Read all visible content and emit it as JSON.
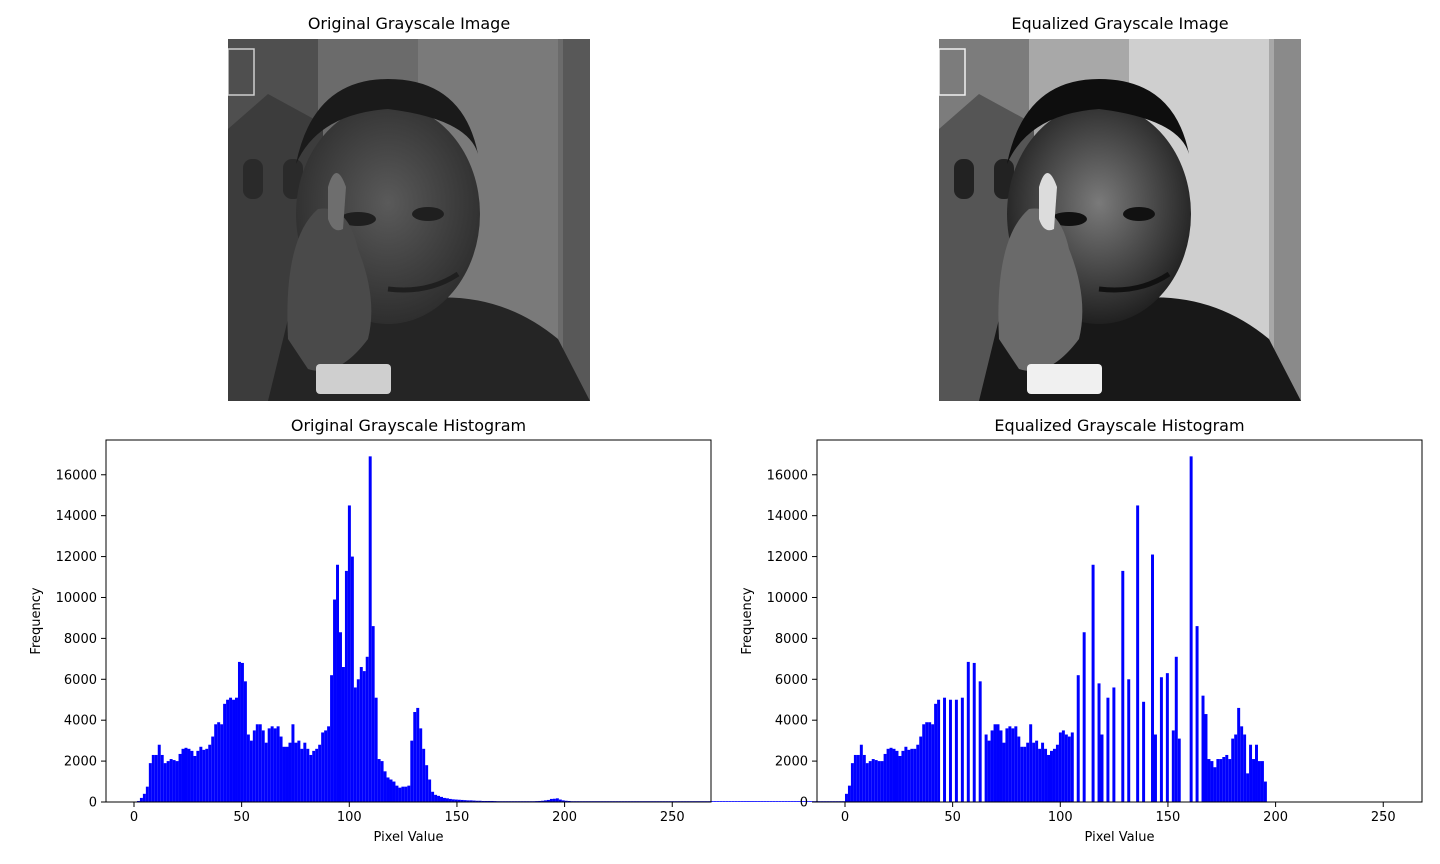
{
  "images": {
    "original": {
      "title": "Original Grayscale Image"
    },
    "equalized": {
      "title": "Equalized Grayscale Image"
    }
  },
  "colors": {
    "bar": "#0000ff",
    "axis": "#000000",
    "background": "#ffffff"
  },
  "chart_data": [
    {
      "id": "orig",
      "type": "bar",
      "title": "Original Grayscale Histogram",
      "xlabel": "Pixel Value",
      "ylabel": "Frequency",
      "xlim": [
        -13,
        268
      ],
      "ylim": [
        0,
        17700
      ],
      "xticks": [
        0,
        50,
        100,
        150,
        200,
        250
      ],
      "yticks": [
        0,
        2000,
        4000,
        6000,
        8000,
        10000,
        12000,
        14000,
        16000
      ],
      "bin_width": 1.38,
      "bins": [
        [
          1,
          50
        ],
        [
          2,
          200
        ],
        [
          3,
          400
        ],
        [
          4,
          750
        ],
        [
          5,
          1900
        ],
        [
          6,
          2300
        ],
        [
          7,
          2300
        ],
        [
          8,
          2800
        ],
        [
          9,
          2300
        ],
        [
          10,
          1900
        ],
        [
          11,
          2000
        ],
        [
          12,
          2100
        ],
        [
          13,
          2050
        ],
        [
          14,
          2000
        ],
        [
          15,
          2350
        ],
        [
          16,
          2600
        ],
        [
          17,
          2650
        ],
        [
          18,
          2600
        ],
        [
          19,
          2500
        ],
        [
          20,
          2250
        ],
        [
          21,
          2500
        ],
        [
          22,
          2700
        ],
        [
          23,
          2550
        ],
        [
          24,
          2600
        ],
        [
          25,
          2800
        ],
        [
          26,
          3200
        ],
        [
          27,
          3800
        ],
        [
          28,
          3900
        ],
        [
          29,
          3800
        ],
        [
          30,
          4800
        ],
        [
          31,
          5000
        ],
        [
          32,
          5100
        ],
        [
          33,
          5000
        ],
        [
          34,
          5100
        ],
        [
          35,
          6850
        ],
        [
          36,
          6800
        ],
        [
          37,
          5900
        ],
        [
          38,
          3300
        ],
        [
          39,
          3000
        ],
        [
          40,
          3500
        ],
        [
          41,
          3800
        ],
        [
          42,
          3800
        ],
        [
          43,
          3500
        ],
        [
          44,
          2900
        ],
        [
          45,
          3600
        ],
        [
          46,
          3700
        ],
        [
          47,
          3600
        ],
        [
          48,
          3700
        ],
        [
          49,
          3200
        ],
        [
          50,
          2700
        ],
        [
          51,
          2700
        ],
        [
          52,
          2900
        ],
        [
          53,
          3800
        ],
        [
          54,
          2900
        ],
        [
          55,
          3000
        ],
        [
          56,
          2600
        ],
        [
          57,
          2900
        ],
        [
          58,
          2600
        ],
        [
          59,
          2300
        ],
        [
          60,
          2500
        ],
        [
          61,
          2600
        ],
        [
          62,
          2800
        ],
        [
          63,
          3400
        ],
        [
          64,
          3500
        ],
        [
          65,
          3700
        ],
        [
          66,
          6200
        ],
        [
          67,
          9900
        ],
        [
          68,
          11600
        ],
        [
          69,
          8300
        ],
        [
          70,
          6600
        ],
        [
          71,
          11300
        ],
        [
          72,
          14500
        ],
        [
          73,
          12000
        ],
        [
          74,
          5600
        ],
        [
          75,
          6000
        ],
        [
          76,
          6600
        ],
        [
          77,
          6400
        ],
        [
          78,
          7100
        ],
        [
          79,
          16900
        ],
        [
          80,
          8600
        ],
        [
          81,
          5100
        ],
        [
          82,
          2100
        ],
        [
          83,
          2000
        ],
        [
          84,
          1500
        ],
        [
          85,
          1200
        ],
        [
          86,
          1100
        ],
        [
          87,
          1000
        ],
        [
          88,
          800
        ],
        [
          89,
          700
        ],
        [
          90,
          750
        ],
        [
          91,
          750
        ],
        [
          92,
          800
        ],
        [
          93,
          3000
        ],
        [
          94,
          4400
        ],
        [
          95,
          4600
        ],
        [
          96,
          3600
        ],
        [
          97,
          2600
        ],
        [
          98,
          1800
        ],
        [
          99,
          1100
        ],
        [
          100,
          500
        ],
        [
          101,
          350
        ],
        [
          102,
          300
        ],
        [
          103,
          250
        ],
        [
          104,
          200
        ],
        [
          105,
          180
        ],
        [
          106,
          150
        ],
        [
          107,
          130
        ],
        [
          108,
          120
        ],
        [
          109,
          110
        ],
        [
          110,
          100
        ],
        [
          111,
          90
        ],
        [
          112,
          80
        ],
        [
          113,
          80
        ],
        [
          114,
          70
        ],
        [
          115,
          60
        ],
        [
          116,
          60
        ],
        [
          117,
          50
        ],
        [
          118,
          50
        ],
        [
          119,
          50
        ],
        [
          120,
          50
        ],
        [
          121,
          45
        ],
        [
          122,
          40
        ],
        [
          123,
          40
        ],
        [
          124,
          40
        ],
        [
          125,
          40
        ],
        [
          126,
          40
        ],
        [
          127,
          40
        ],
        [
          128,
          40
        ],
        [
          129,
          40
        ],
        [
          130,
          40
        ],
        [
          131,
          40
        ],
        [
          132,
          40
        ],
        [
          133,
          40
        ],
        [
          134,
          40
        ],
        [
          135,
          45
        ],
        [
          136,
          50
        ],
        [
          137,
          60
        ],
        [
          138,
          80
        ],
        [
          139,
          100
        ],
        [
          140,
          150
        ],
        [
          141,
          160
        ],
        [
          142,
          180
        ],
        [
          143,
          120
        ],
        [
          144,
          80
        ],
        [
          145,
          60
        ],
        [
          146,
          50
        ],
        [
          147,
          40
        ],
        [
          148,
          40
        ],
        [
          149,
          40
        ],
        [
          150,
          40
        ],
        [
          151,
          40
        ],
        [
          152,
          40
        ],
        [
          153,
          40
        ],
        [
          154,
          40
        ],
        [
          155,
          40
        ],
        [
          156,
          40
        ],
        [
          157,
          40
        ],
        [
          158,
          40
        ],
        [
          159,
          40
        ],
        [
          160,
          40
        ],
        [
          161,
          40
        ],
        [
          162,
          40
        ],
        [
          163,
          40
        ],
        [
          164,
          40
        ],
        [
          165,
          40
        ],
        [
          166,
          40
        ],
        [
          167,
          40
        ],
        [
          168,
          40
        ],
        [
          169,
          40
        ],
        [
          170,
          40
        ],
        [
          171,
          40
        ],
        [
          172,
          40
        ],
        [
          173,
          40
        ],
        [
          174,
          40
        ],
        [
          175,
          40
        ],
        [
          176,
          40
        ],
        [
          177,
          40
        ],
        [
          178,
          40
        ],
        [
          179,
          40
        ],
        [
          180,
          40
        ],
        [
          181,
          40
        ],
        [
          182,
          40
        ],
        [
          183,
          40
        ],
        [
          184,
          40
        ],
        [
          185,
          40
        ],
        [
          186,
          40
        ],
        [
          187,
          40
        ],
        [
          188,
          40
        ],
        [
          189,
          40
        ],
        [
          190,
          40
        ],
        [
          191,
          40
        ],
        [
          192,
          40
        ],
        [
          193,
          40
        ],
        [
          194,
          40
        ],
        [
          195,
          40
        ],
        [
          196,
          40
        ],
        [
          197,
          40
        ],
        [
          198,
          40
        ],
        [
          199,
          40
        ],
        [
          200,
          40
        ],
        [
          201,
          40
        ],
        [
          202,
          40
        ],
        [
          203,
          40
        ],
        [
          204,
          40
        ],
        [
          205,
          40
        ],
        [
          206,
          40
        ],
        [
          207,
          40
        ],
        [
          208,
          40
        ],
        [
          209,
          40
        ],
        [
          210,
          40
        ],
        [
          211,
          40
        ],
        [
          212,
          40
        ],
        [
          213,
          40
        ],
        [
          214,
          40
        ],
        [
          215,
          40
        ],
        [
          216,
          40
        ],
        [
          217,
          40
        ],
        [
          218,
          40
        ],
        [
          219,
          40
        ],
        [
          220,
          40
        ],
        [
          221,
          40
        ],
        [
          222,
          40
        ],
        [
          223,
          40
        ],
        [
          224,
          40
        ],
        [
          225,
          40
        ],
        [
          226,
          40
        ],
        [
          227,
          40
        ],
        [
          228,
          40
        ],
        [
          229,
          40
        ],
        [
          230,
          40
        ],
        [
          231,
          40
        ],
        [
          232,
          40
        ],
        [
          233,
          40
        ],
        [
          234,
          40
        ],
        [
          235,
          40
        ],
        [
          236,
          40
        ],
        [
          237,
          40
        ],
        [
          238,
          40
        ],
        [
          239,
          40
        ],
        [
          240,
          40
        ],
        [
          241,
          40
        ],
        [
          242,
          40
        ],
        [
          243,
          40
        ],
        [
          244,
          40
        ],
        [
          245,
          40
        ],
        [
          246,
          40
        ],
        [
          247,
          40
        ],
        [
          248,
          40
        ],
        [
          249,
          40
        ],
        [
          250,
          40
        ],
        [
          251,
          40
        ]
      ]
    },
    {
      "id": "eq",
      "type": "bar",
      "title": "Equalized Grayscale Histogram",
      "xlabel": "Pixel Value",
      "ylabel": "Frequency",
      "xlim": [
        -13,
        268
      ],
      "ylim": [
        0,
        17700
      ],
      "xticks": [
        0,
        50,
        100,
        150,
        200,
        250
      ],
      "yticks": [
        0,
        2000,
        4000,
        6000,
        8000,
        10000,
        12000,
        14000,
        16000
      ],
      "bin_width": 1.38,
      "bins": [
        [
          0,
          400
        ],
        [
          1,
          800
        ],
        [
          2,
          1900
        ],
        [
          3,
          2300
        ],
        [
          4,
          2300
        ],
        [
          5,
          2800
        ],
        [
          6,
          2300
        ],
        [
          7,
          1900
        ],
        [
          8,
          2000
        ],
        [
          9,
          2100
        ],
        [
          10,
          2050
        ],
        [
          11,
          2000
        ],
        [
          12,
          2000
        ],
        [
          13,
          2350
        ],
        [
          14,
          2600
        ],
        [
          15,
          2650
        ],
        [
          16,
          2600
        ],
        [
          17,
          2500
        ],
        [
          18,
          2250
        ],
        [
          19,
          2500
        ],
        [
          20,
          2700
        ],
        [
          21,
          2550
        ],
        [
          22,
          2600
        ],
        [
          23,
          2600
        ],
        [
          24,
          2800
        ],
        [
          25,
          3200
        ],
        [
          26,
          3800
        ],
        [
          27,
          3900
        ],
        [
          28,
          3900
        ],
        [
          29,
          3800
        ],
        [
          30,
          4800
        ],
        [
          31,
          5000
        ],
        [
          33,
          5100
        ],
        [
          35,
          5000
        ],
        [
          37,
          5000
        ],
        [
          39,
          5100
        ],
        [
          41,
          6850
        ],
        [
          43,
          6800
        ],
        [
          45,
          5900
        ],
        [
          47,
          3300
        ],
        [
          48,
          3000
        ],
        [
          49,
          3500
        ],
        [
          50,
          3800
        ],
        [
          51,
          3800
        ],
        [
          52,
          3500
        ],
        [
          53,
          2900
        ],
        [
          54,
          3600
        ],
        [
          55,
          3700
        ],
        [
          56,
          3600
        ],
        [
          57,
          3700
        ],
        [
          58,
          3200
        ],
        [
          59,
          2700
        ],
        [
          60,
          2700
        ],
        [
          61,
          2900
        ],
        [
          62,
          3800
        ],
        [
          63,
          2900
        ],
        [
          64,
          3000
        ],
        [
          65,
          2600
        ],
        [
          66,
          2900
        ],
        [
          67,
          2600
        ],
        [
          68,
          2300
        ],
        [
          69,
          2500
        ],
        [
          70,
          2600
        ],
        [
          71,
          2800
        ],
        [
          72,
          3400
        ],
        [
          73,
          3500
        ],
        [
          74,
          3300
        ],
        [
          75,
          3200
        ],
        [
          76,
          3400
        ],
        [
          78,
          6200
        ],
        [
          80,
          8300
        ],
        [
          83,
          11600
        ],
        [
          85,
          5800
        ],
        [
          86,
          3300
        ],
        [
          88,
          5100
        ],
        [
          90,
          5600
        ],
        [
          93,
          11300
        ],
        [
          95,
          6000
        ],
        [
          98,
          14500
        ],
        [
          100,
          4900
        ],
        [
          103,
          12100
        ],
        [
          104,
          3300
        ],
        [
          106,
          6100
        ],
        [
          108,
          6300
        ],
        [
          110,
          3500
        ],
        [
          111,
          7100
        ],
        [
          112,
          3100
        ],
        [
          116,
          16900
        ],
        [
          118,
          8600
        ],
        [
          120,
          5200
        ],
        [
          121,
          4300
        ],
        [
          122,
          2100
        ],
        [
          123,
          2000
        ],
        [
          124,
          1700
        ],
        [
          125,
          2100
        ],
        [
          126,
          2100
        ],
        [
          127,
          2200
        ],
        [
          128,
          2300
        ],
        [
          129,
          2100
        ],
        [
          130,
          3100
        ],
        [
          131,
          3300
        ],
        [
          132,
          4600
        ],
        [
          133,
          3700
        ],
        [
          134,
          3300
        ],
        [
          135,
          1400
        ],
        [
          136,
          2800
        ],
        [
          137,
          2100
        ],
        [
          138,
          2800
        ],
        [
          139,
          2000
        ],
        [
          140,
          2000
        ],
        [
          141,
          1000
        ]
      ]
    }
  ]
}
